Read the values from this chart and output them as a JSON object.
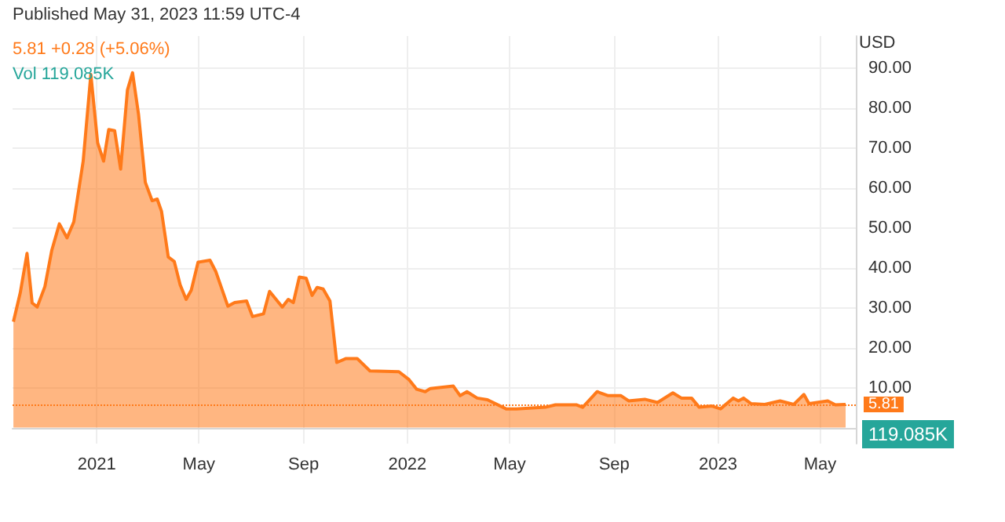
{
  "chart_data": {
    "type": "area",
    "ylabel": "USD",
    "color": "#ff7a1a",
    "grid": true,
    "marker": "none",
    "annotations": [
      "Published May 31, 2023 11:59 UTC-4",
      "5.81 +0.28 (+5.06%)",
      "Vol 119.085K",
      "119.085K"
    ],
    "x": [
      "2020-09-25",
      "2020-10-03",
      "2020-10-11",
      "2020-10-17",
      "2020-10-23",
      "2020-11-01",
      "2020-11-09",
      "2020-11-18",
      "2020-11-27",
      "2020-12-05",
      "2020-12-16",
      "2020-12-25",
      "2021-01-02",
      "2021-01-09",
      "2021-01-15",
      "2021-01-22",
      "2021-01-29",
      "2021-02-06",
      "2021-02-12",
      "2021-02-19",
      "2021-02-27",
      "2021-03-07",
      "2021-03-13",
      "2021-03-18",
      "2021-03-26",
      "2021-04-02",
      "2021-04-09",
      "2021-04-16",
      "2021-04-22",
      "2021-04-30",
      "2021-05-14",
      "2021-05-21",
      "2021-06-04",
      "2021-06-12",
      "2021-06-26",
      "2021-07-03",
      "2021-07-16",
      "2021-07-23",
      "2021-08-07",
      "2021-08-14",
      "2021-08-20",
      "2021-08-27",
      "2021-09-04",
      "2021-09-11",
      "2021-09-17",
      "2021-09-24",
      "2021-10-02",
      "2021-10-10",
      "2021-10-21",
      "2021-11-03",
      "2021-11-18",
      "2021-12-22",
      "2022-01-03",
      "2022-01-12",
      "2022-01-22",
      "2022-01-28",
      "2022-02-24",
      "2022-03-04",
      "2022-03-12",
      "2022-03-24",
      "2022-04-05",
      "2022-04-27",
      "2022-05-09",
      "2022-06-12",
      "2022-06-24",
      "2022-07-19",
      "2022-07-26",
      "2022-08-12",
      "2022-08-25",
      "2022-09-09",
      "2022-09-18",
      "2022-10-07",
      "2022-10-22",
      "2022-11-09",
      "2022-11-19",
      "2022-12-01",
      "2022-12-10",
      "2022-12-25",
      "2023-01-04",
      "2023-01-19",
      "2023-01-25",
      "2023-01-31",
      "2023-02-09",
      "2023-02-25",
      "2023-03-15",
      "2023-03-31",
      "2023-04-12",
      "2023-04-18",
      "2023-05-10",
      "2023-05-19",
      "2023-05-31"
    ],
    "values": [
      26.5,
      33.7,
      43.6,
      31.2,
      30.2,
      35.3,
      44.3,
      51,
      47.5,
      51.5,
      66.7,
      88.4,
      71.3,
      66.7,
      74.6,
      74.3,
      64.7,
      84.5,
      88.8,
      78.5,
      61.4,
      56.8,
      57.2,
      54.2,
      42.7,
      41.6,
      35.7,
      32.1,
      34.4,
      41.4,
      41.9,
      39,
      30.4,
      31.3,
      31.7,
      27.8,
      28.5,
      34.1,
      30.2,
      32.1,
      31.3,
      37.7,
      37.4,
      33.1,
      35.1,
      34.7,
      31.7,
      16.3,
      17.3,
      17.3,
      14.2,
      14,
      12,
      9.6,
      9,
      9.8,
      10.4,
      8,
      9,
      7.4,
      7,
      4.7,
      4.7,
      5.1,
      5.7,
      5.7,
      5.1,
      9,
      8,
      8,
      6.7,
      7.1,
      6.3,
      8.7,
      7.4,
      7.4,
      5.1,
      5.4,
      4.7,
      7.4,
      6.7,
      7.4,
      6,
      5.8,
      6.7,
      5.8,
      8.3,
      6,
      6.7,
      5.7,
      5.81
    ],
    "xlim": [
      "2020-09-24",
      "2023-06-12"
    ],
    "xticks": [
      {
        "value": "2021-01-01",
        "label": "2021"
      },
      {
        "value": "2021-05-01",
        "label": "May"
      },
      {
        "value": "2021-09-01",
        "label": "Sep"
      },
      {
        "value": "2022-01-01",
        "label": "2022"
      },
      {
        "value": "2022-05-01",
        "label": "May"
      },
      {
        "value": "2022-09-01",
        "label": "Sep"
      },
      {
        "value": "2023-01-01",
        "label": "2023"
      },
      {
        "value": "2023-05-01",
        "label": "May"
      }
    ],
    "ylim": [
      -4,
      98
    ],
    "yticks": [
      {
        "value": 10,
        "label": "10.00"
      },
      {
        "value": 20,
        "label": "20.00"
      },
      {
        "value": 30,
        "label": "30.00"
      },
      {
        "value": 40,
        "label": "40.00"
      },
      {
        "value": 50,
        "label": "50.00"
      },
      {
        "value": 60,
        "label": "60.00"
      },
      {
        "value": 70,
        "label": "70.00"
      },
      {
        "value": 80,
        "label": "80.00"
      },
      {
        "value": 90,
        "label": "90.00"
      }
    ],
    "ref_lines": [
      {
        "axis": "y",
        "value": 5.81,
        "label": "5.81",
        "color": "#ff7a1a",
        "line_style": "dotted"
      }
    ]
  }
}
